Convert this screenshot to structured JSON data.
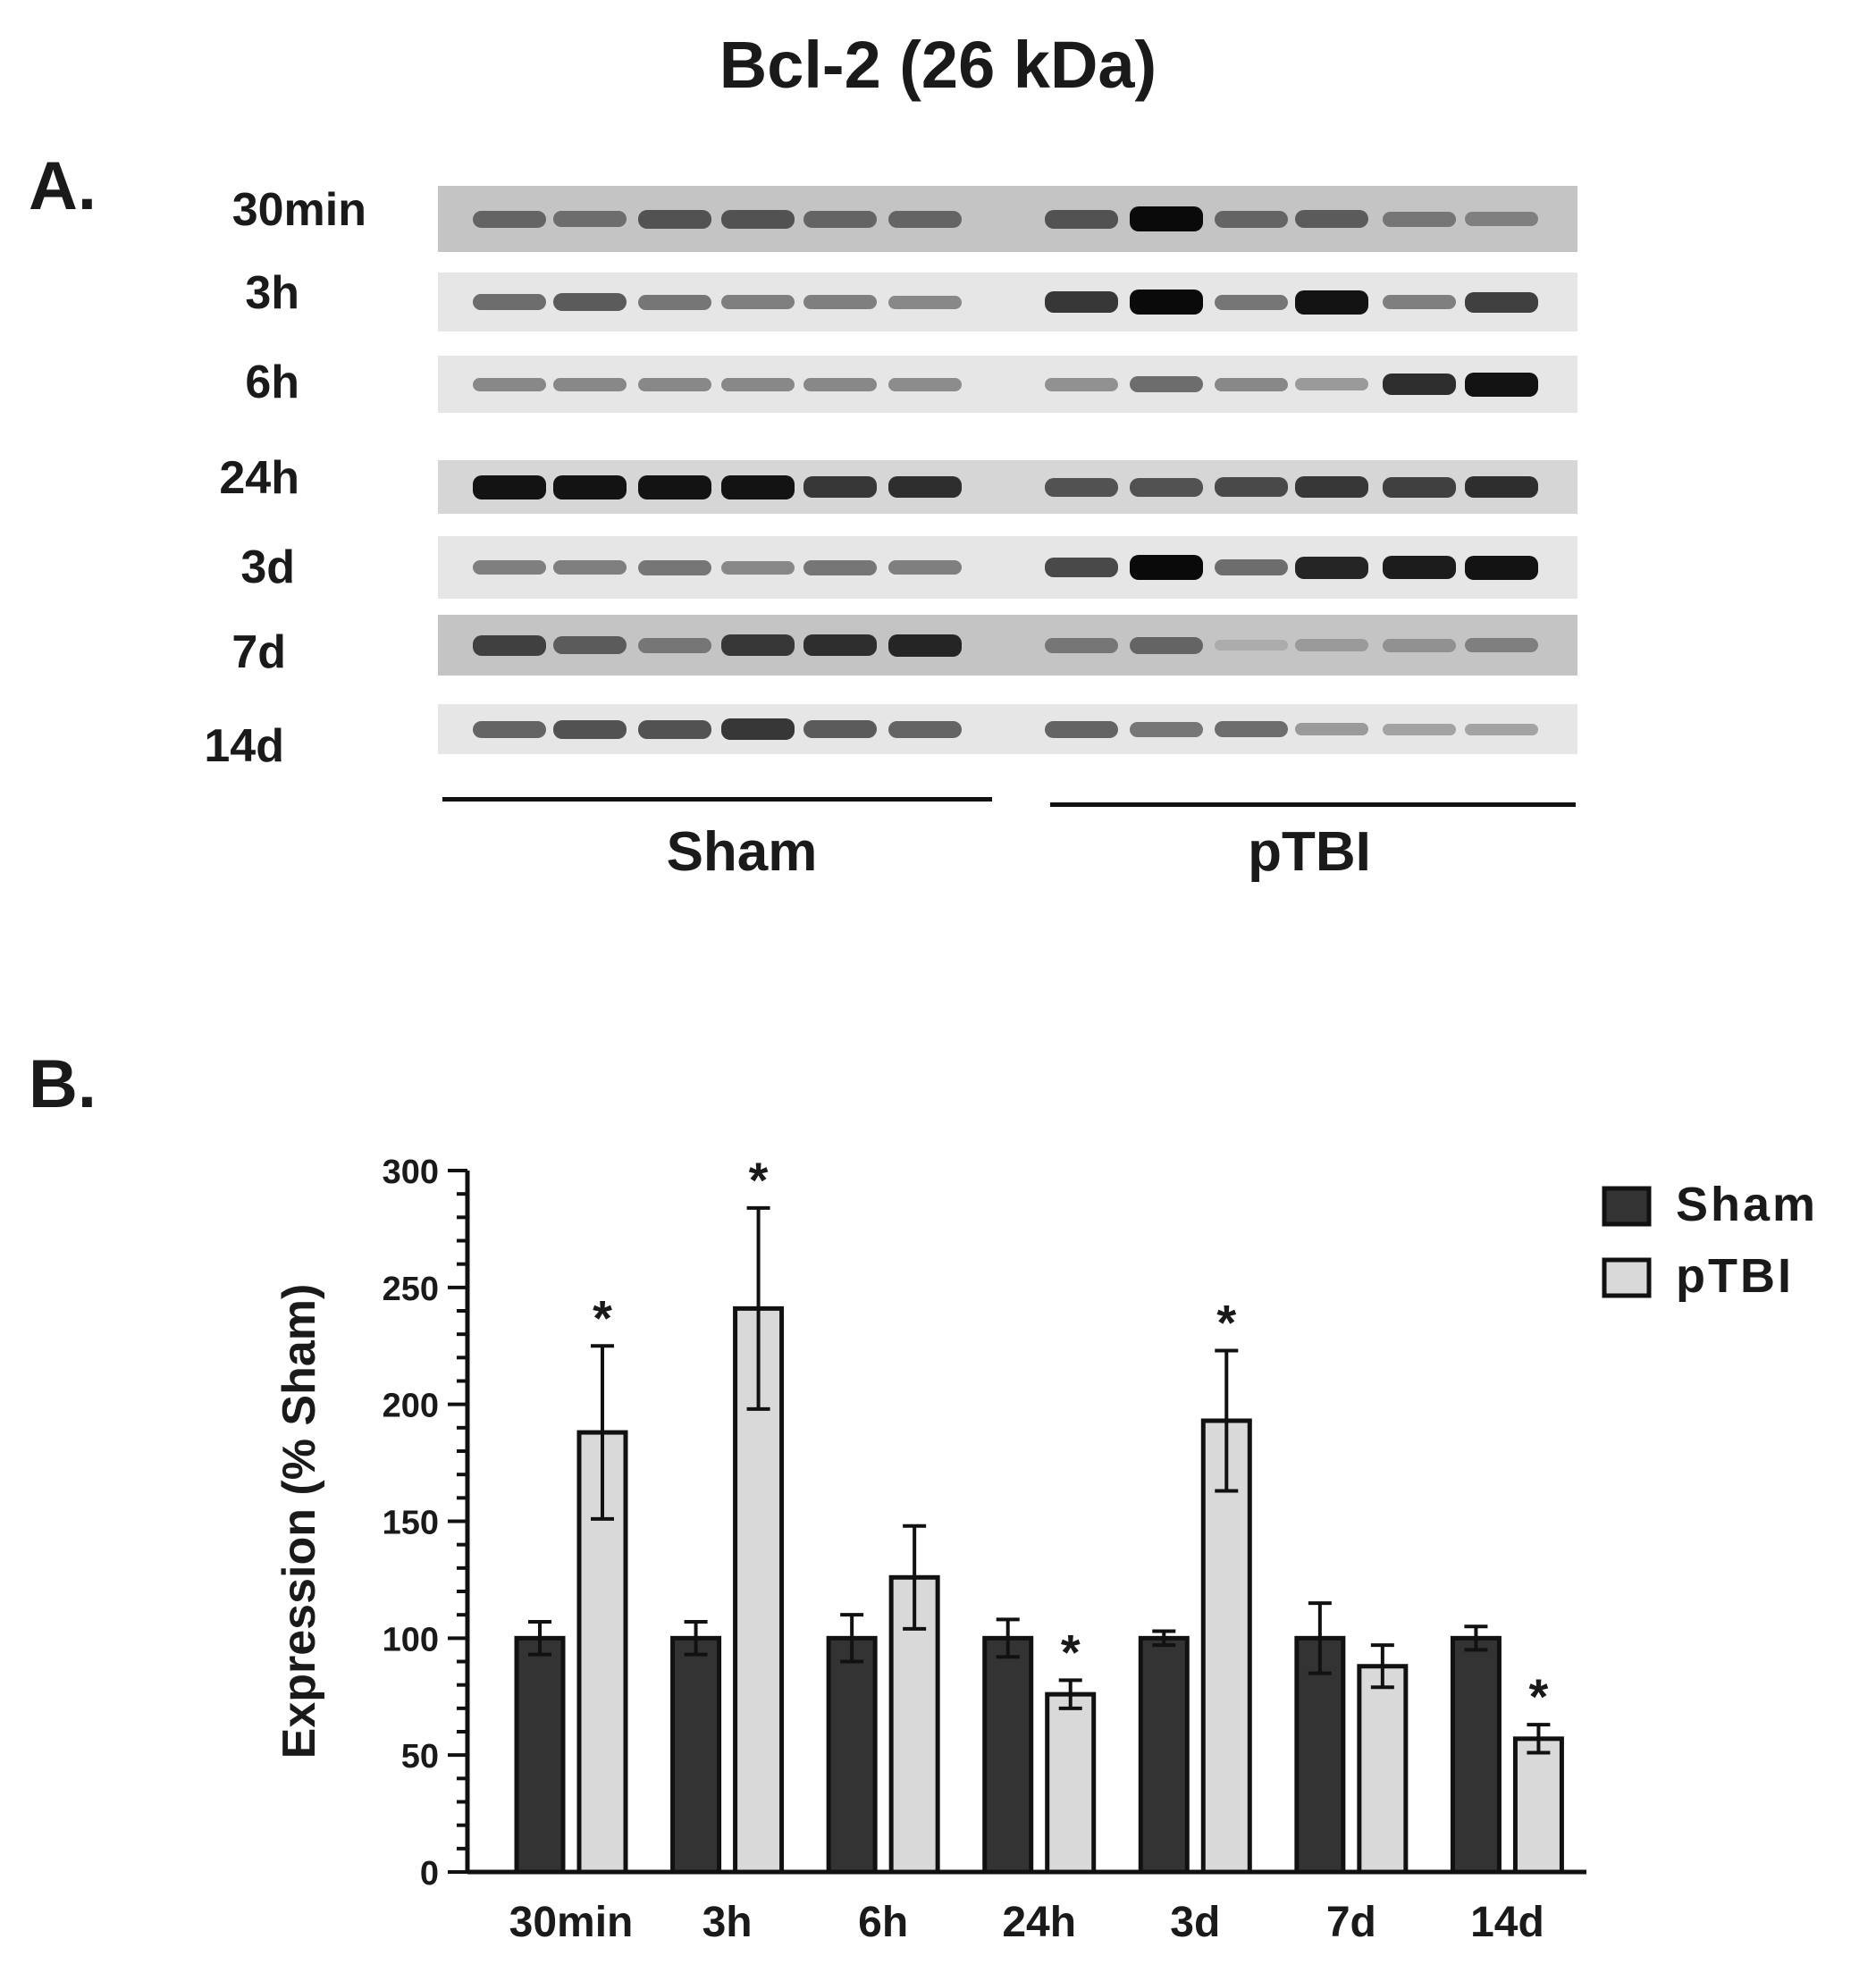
{
  "figure_title": "Bcl-2 (26 kDa)",
  "panel_a": {
    "label": "A.",
    "time_points": [
      "30min",
      "3h",
      "6h",
      "24h",
      "3d",
      "7d",
      "14d"
    ],
    "groups": [
      "Sham",
      "pTBI"
    ],
    "blot_intensity": {
      "Sham": [
        [
          0.5,
          0.45,
          0.6,
          0.6,
          0.5,
          0.5
        ],
        [
          0.45,
          0.55,
          0.4,
          0.35,
          0.35,
          0.3
        ],
        [
          0.3,
          0.3,
          0.3,
          0.3,
          0.3,
          0.28
        ],
        [
          0.95,
          0.95,
          0.95,
          0.95,
          0.75,
          0.8
        ],
        [
          0.35,
          0.35,
          0.4,
          0.3,
          0.4,
          0.35
        ],
        [
          0.7,
          0.55,
          0.4,
          0.75,
          0.8,
          0.85
        ],
        [
          0.5,
          0.6,
          0.6,
          0.75,
          0.55,
          0.5
        ]
      ],
      "pTBI": [
        [
          0.6,
          1.0,
          0.5,
          0.55,
          0.4,
          0.35
        ],
        [
          0.75,
          1.0,
          0.4,
          0.95,
          0.35,
          0.7
        ],
        [
          0.25,
          0.45,
          0.3,
          0.2,
          0.8,
          0.95
        ],
        [
          0.6,
          0.6,
          0.65,
          0.75,
          0.7,
          0.8
        ],
        [
          0.65,
          1.0,
          0.45,
          0.85,
          0.9,
          0.95
        ],
        [
          0.4,
          0.5,
          0.1,
          0.2,
          0.25,
          0.35
        ],
        [
          0.5,
          0.4,
          0.45,
          0.2,
          0.15,
          0.15
        ]
      ]
    }
  },
  "panel_b": {
    "label": "B."
  },
  "chart_data": {
    "type": "bar",
    "categories": [
      "30min",
      "3h",
      "6h",
      "24h",
      "3d",
      "7d",
      "14d"
    ],
    "series": [
      {
        "name": "Sham",
        "color": "#333333",
        "values": [
          100,
          100,
          100,
          100,
          100,
          100,
          100
        ],
        "errors": [
          7,
          7,
          10,
          8,
          3,
          15,
          5
        ]
      },
      {
        "name": "pTBI",
        "color": "#d9d9d9",
        "values": [
          188,
          241,
          126,
          76,
          193,
          88,
          57
        ],
        "errors": [
          37,
          43,
          22,
          6,
          30,
          9,
          6
        ]
      }
    ],
    "significance": [
      "*",
      "*",
      "",
      "*",
      "*",
      "",
      "*"
    ],
    "ylabel": "Expression (% Sham)",
    "xlabel": "",
    "ylim": [
      0,
      300
    ],
    "yticks": [
      0,
      50,
      100,
      150,
      200,
      250,
      300
    ],
    "legend": {
      "position": "top-right"
    }
  }
}
